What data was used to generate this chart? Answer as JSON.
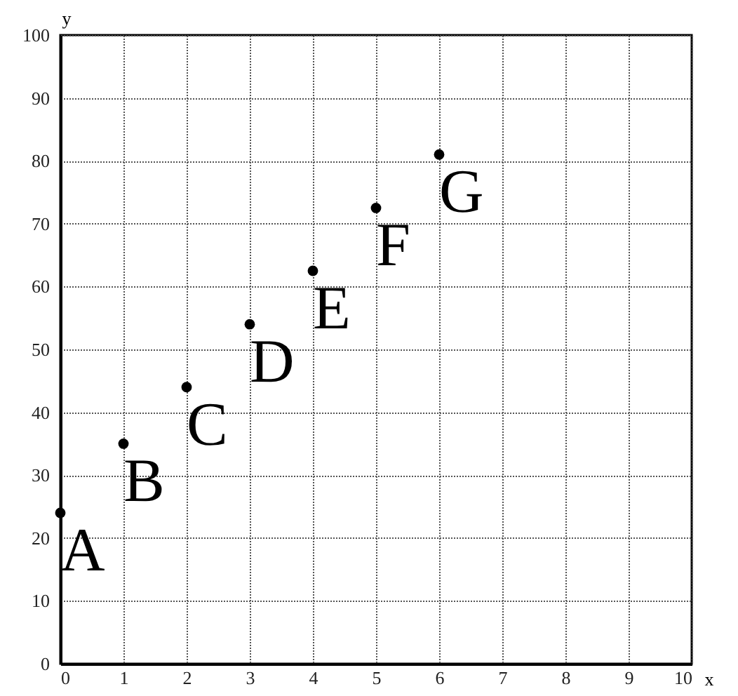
{
  "chart_data": {
    "type": "scatter",
    "x": [
      0,
      1,
      2,
      3,
      4,
      5,
      6
    ],
    "values": [
      24,
      35,
      44,
      54,
      62.5,
      72.5,
      81
    ],
    "color": "#000000",
    "marker": "circle",
    "xlim": [
      0,
      10
    ],
    "xticks": [
      0,
      1,
      2,
      3,
      4,
      5,
      6,
      7,
      8,
      9,
      10
    ],
    "ylim": [
      0,
      100
    ],
    "yticks": [
      0,
      10,
      20,
      30,
      40,
      50,
      60,
      70,
      80,
      90,
      100
    ],
    "xlabel": "x",
    "ylabel": "y",
    "grid": true,
    "annotations": [
      {
        "text": "A",
        "x": 0,
        "y": 24
      },
      {
        "text": "B",
        "x": 1,
        "y": 35
      },
      {
        "text": "C",
        "x": 2,
        "y": 44
      },
      {
        "text": "D",
        "x": 3,
        "y": 54
      },
      {
        "text": "E",
        "x": 4,
        "y": 62.5
      },
      {
        "text": "F",
        "x": 5,
        "y": 72.5
      },
      {
        "text": "G",
        "x": 6,
        "y": 81
      }
    ]
  }
}
